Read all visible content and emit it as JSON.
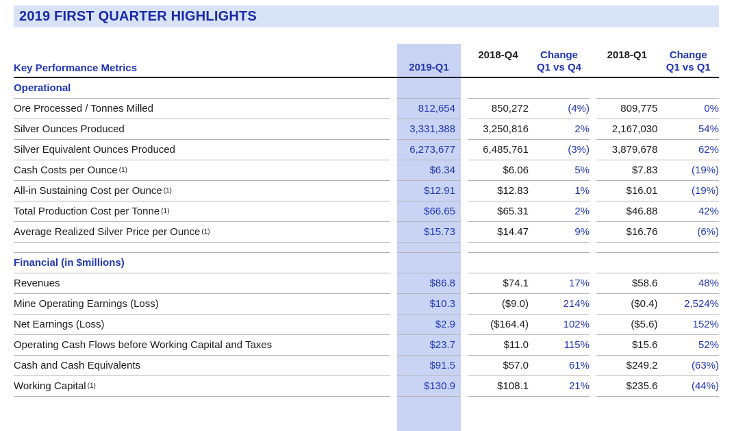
{
  "page": {
    "title": "2019 FIRST QUARTER HIGHLIGHTS"
  },
  "colors": {
    "accent_blue": "#2236B4",
    "title_blue": "#1B2AA6",
    "title_bar_bg": "#D9E3F8",
    "highlight_column_bg": "#C9D4F5",
    "row_line_gray": "#B3B3B3",
    "header_rule_black": "#1F1F1F"
  },
  "table": {
    "row_label_header": "Key Performance Metrics",
    "column_headers": [
      {
        "label": "2019-Q1",
        "highlighted": true
      },
      {
        "label": "2018-Q4",
        "highlighted": false
      },
      {
        "label": "Change\nQ1 vs Q4",
        "highlighted": false
      },
      {
        "label": "2018-Q1",
        "highlighted": false
      },
      {
        "label": "Change\nQ1 vs Q1",
        "highlighted": false
      }
    ],
    "rows": [
      {
        "type": "section",
        "label": "Operational"
      },
      {
        "type": "data",
        "label": "Ore Processed / Tonnes Milled",
        "footnote": "",
        "values": [
          "812,654",
          "850,272",
          "(4%)",
          "809,775",
          "0%"
        ]
      },
      {
        "type": "data",
        "label": "Silver Ounces Produced",
        "footnote": "",
        "values": [
          "3,331,388",
          "3,250,816",
          "2%",
          "2,167,030",
          "54%"
        ]
      },
      {
        "type": "data",
        "label": "Silver Equivalent Ounces Produced",
        "footnote": "",
        "values": [
          "6,273,677",
          "6,485,761",
          "(3%)",
          "3,879,678",
          "62%"
        ]
      },
      {
        "type": "data",
        "label": "Cash Costs per Ounce",
        "footnote": "(1)",
        "values": [
          "$6.34",
          "$6.06",
          "5%",
          "$7.83",
          "(19%)"
        ]
      },
      {
        "type": "data",
        "label": "All-in Sustaining Cost per Ounce",
        "footnote": "(1)",
        "values": [
          "$12.91",
          "$12.83",
          "1%",
          "$16.01",
          "(19%)"
        ]
      },
      {
        "type": "data",
        "label": "Total Production Cost per Tonne",
        "footnote": "(1)",
        "values": [
          "$66.65",
          "$65.31",
          "2%",
          "$46.88",
          "42%"
        ]
      },
      {
        "type": "data",
        "label": "Average Realized Silver Price per Ounce",
        "footnote": "(1)",
        "values": [
          "$15.73",
          "$14.47",
          "9%",
          "$16.76",
          "(6%)"
        ]
      },
      {
        "type": "spacer"
      },
      {
        "type": "section",
        "label": "Financial (in $millions)"
      },
      {
        "type": "data",
        "label": "Revenues",
        "footnote": "",
        "values": [
          "$86.8",
          "$74.1",
          "17%",
          "$58.6",
          "48%"
        ]
      },
      {
        "type": "data",
        "label": "Mine Operating Earnings (Loss)",
        "footnote": "",
        "values": [
          "$10.3",
          "($9.0)",
          "214%",
          "($0.4)",
          "2,524%"
        ]
      },
      {
        "type": "data",
        "label": "Net Earnings (Loss)",
        "footnote": "",
        "values": [
          "$2.9",
          "($164.4)",
          "102%",
          "($5.6)",
          "152%"
        ]
      },
      {
        "type": "data",
        "label": "Operating Cash Flows before Working Capital and Taxes",
        "footnote": "",
        "values": [
          "$23.7",
          "$11.0",
          "115%",
          "$15.6",
          "52%"
        ]
      },
      {
        "type": "data",
        "label": "Cash and Cash Equivalents",
        "footnote": "",
        "values": [
          "$91.5",
          "$57.0",
          "61%",
          "$249.2",
          "(63%)"
        ]
      },
      {
        "type": "data",
        "label": "Working Capital",
        "footnote": "(1)",
        "values": [
          "$130.9",
          "$108.1",
          "21%",
          "$235.6",
          "(44%)"
        ]
      },
      {
        "type": "spacer-end"
      }
    ]
  },
  "chart_data": {
    "type": "table",
    "title": "2019 FIRST QUARTER HIGHLIGHTS",
    "columns": [
      "Key Performance Metrics",
      "2019-Q1",
      "2018-Q4",
      "Change Q1 vs Q4",
      "2018-Q1",
      "Change Q1 vs Q1"
    ],
    "sections": [
      {
        "name": "Operational",
        "rows": [
          [
            "Ore Processed / Tonnes Milled",
            "812,654",
            "850,272",
            "(4%)",
            "809,775",
            "0%"
          ],
          [
            "Silver Ounces Produced",
            "3,331,388",
            "3,250,816",
            "2%",
            "2,167,030",
            "54%"
          ],
          [
            "Silver Equivalent Ounces Produced",
            "6,273,677",
            "6,485,761",
            "(3%)",
            "3,879,678",
            "62%"
          ],
          [
            "Cash Costs per Ounce (1)",
            "$6.34",
            "$6.06",
            "5%",
            "$7.83",
            "(19%)"
          ],
          [
            "All-in Sustaining Cost per Ounce (1)",
            "$12.91",
            "$12.83",
            "1%",
            "$16.01",
            "(19%)"
          ],
          [
            "Total Production Cost per Tonne (1)",
            "$66.65",
            "$65.31",
            "2%",
            "$46.88",
            "42%"
          ],
          [
            "Average Realized Silver Price per Ounce (1)",
            "$15.73",
            "$14.47",
            "9%",
            "$16.76",
            "(6%)"
          ]
        ]
      },
      {
        "name": "Financial (in $millions)",
        "rows": [
          [
            "Revenues",
            "$86.8",
            "$74.1",
            "17%",
            "$58.6",
            "48%"
          ],
          [
            "Mine Operating Earnings (Loss)",
            "$10.3",
            "($9.0)",
            "214%",
            "($0.4)",
            "2,524%"
          ],
          [
            "Net Earnings (Loss)",
            "$2.9",
            "($164.4)",
            "102%",
            "($5.6)",
            "152%"
          ],
          [
            "Operating Cash Flows before Working Capital and Taxes",
            "$23.7",
            "$11.0",
            "115%",
            "$15.6",
            "52%"
          ],
          [
            "Cash and Cash Equivalents",
            "$91.5",
            "$57.0",
            "61%",
            "$249.2",
            "(63%)"
          ],
          [
            "Working Capital (1)",
            "$130.9",
            "$108.1",
            "21%",
            "$235.6",
            "(44%)"
          ]
        ]
      }
    ]
  }
}
